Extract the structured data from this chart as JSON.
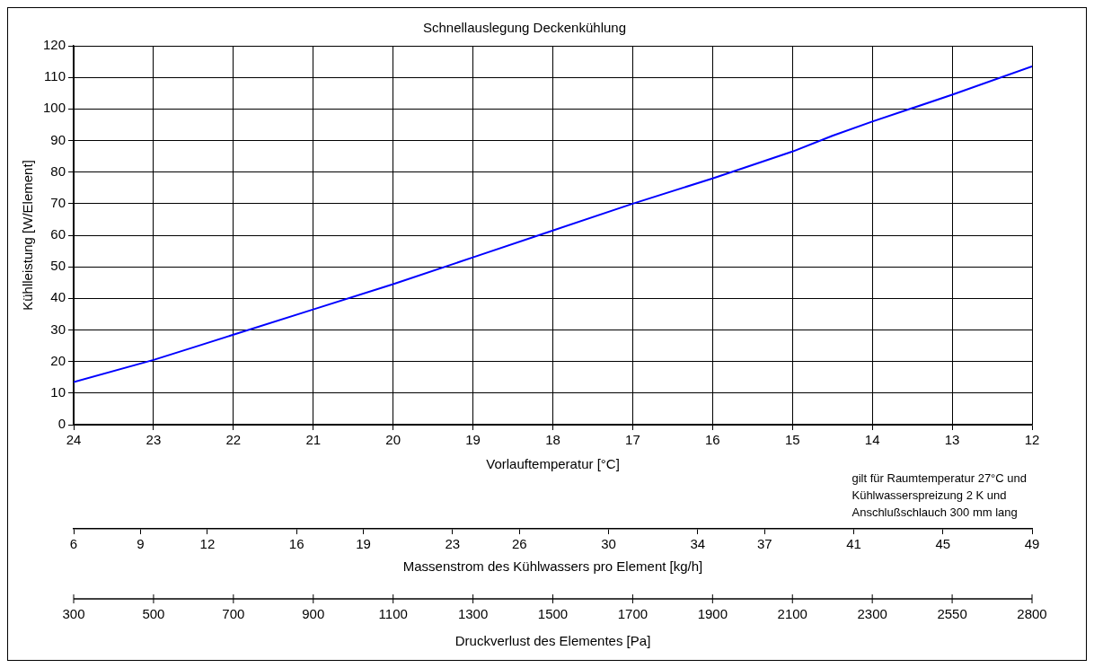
{
  "chart_data": {
    "type": "line",
    "title": "Schnellauslegung Deckenkühlung",
    "xlabel": "Vorlauftemperatur [°C]",
    "ylabel": "Kühlleistung [W/Element]",
    "x": [
      24,
      23,
      22.5,
      22,
      21,
      20,
      19,
      18,
      17,
      16,
      15,
      14.5,
      14,
      13,
      12
    ],
    "series": [
      {
        "color": "#0000ff",
        "values": [
          13.5,
          20.5,
          24.5,
          28.5,
          36.5,
          44.5,
          53,
          61.5,
          70,
          78,
          86.5,
          91.5,
          96,
          104.5,
          113.5
        ]
      }
    ],
    "xlim": [
      24,
      12
    ],
    "xticks": [
      24,
      23,
      22,
      21,
      20,
      19,
      18,
      17,
      16,
      15,
      14,
      13,
      12
    ],
    "ylim": [
      0,
      120
    ],
    "yticks": [
      0,
      10,
      20,
      30,
      40,
      50,
      60,
      70,
      80,
      90,
      100,
      110,
      120
    ],
    "x2lim": [
      6,
      49
    ],
    "x2label": "Massenstrom des Kühlwassers pro Element [kg/h]",
    "x2ticks": [
      6,
      9,
      12,
      16,
      19,
      23,
      26,
      30,
      34,
      37,
      41,
      45,
      49
    ],
    "annotations": [
      "gilt für Raumtemperatur 27°C und\nKühlwasserspreizung 2 K und\nAnschlußschlauch 300 mm lang",
      "Druckverlust des Elementes [Pa]",
      {
        "text": "300",
        "x": 24
      },
      {
        "text": "500",
        "x": 23
      },
      {
        "text": "700",
        "x": 22
      },
      {
        "text": "900",
        "x": 21
      },
      {
        "text": "1100",
        "x": 20
      },
      {
        "text": "1300",
        "x": 19
      },
      {
        "text": "1500",
        "x": 18
      },
      {
        "text": "1700",
        "x": 17
      },
      {
        "text": "1900",
        "x": 16
      },
      {
        "text": "2100",
        "x": 15
      },
      {
        "text": "2300",
        "x": 14
      },
      {
        "text": "2550",
        "x": 13
      },
      {
        "text": "2800",
        "x": 12
      }
    ],
    "grid": true,
    "legend": false,
    "marker": "none",
    "line_style": "solid"
  }
}
